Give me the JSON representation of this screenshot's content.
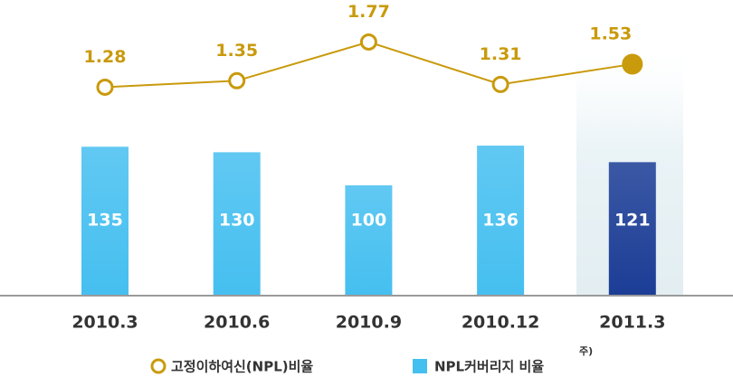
{
  "chart_data": {
    "type": "bar_line",
    "categories": [
      "2010.3",
      "2010.6",
      "2010.9",
      "2010.12",
      "2011.3"
    ],
    "series": [
      {
        "name": "NPL커버리지 비율",
        "type": "bar",
        "color": "#45bff0",
        "colors": [
          "#45bff0",
          "#45bff0",
          "#45bff0",
          "#45bff0",
          "#1c3d96"
        ],
        "values": [
          135,
          130,
          100,
          136,
          121
        ]
      },
      {
        "name": "고정이하여신(NPL)비율",
        "type": "line",
        "axis": "y2",
        "color": "#c99a0c",
        "values": [
          1.28,
          1.35,
          1.77,
          1.31,
          1.53
        ]
      }
    ],
    "legend_note": "주)",
    "ylim": [
      0,
      150
    ],
    "y2lim": [
      1.0,
      2.0
    ]
  }
}
